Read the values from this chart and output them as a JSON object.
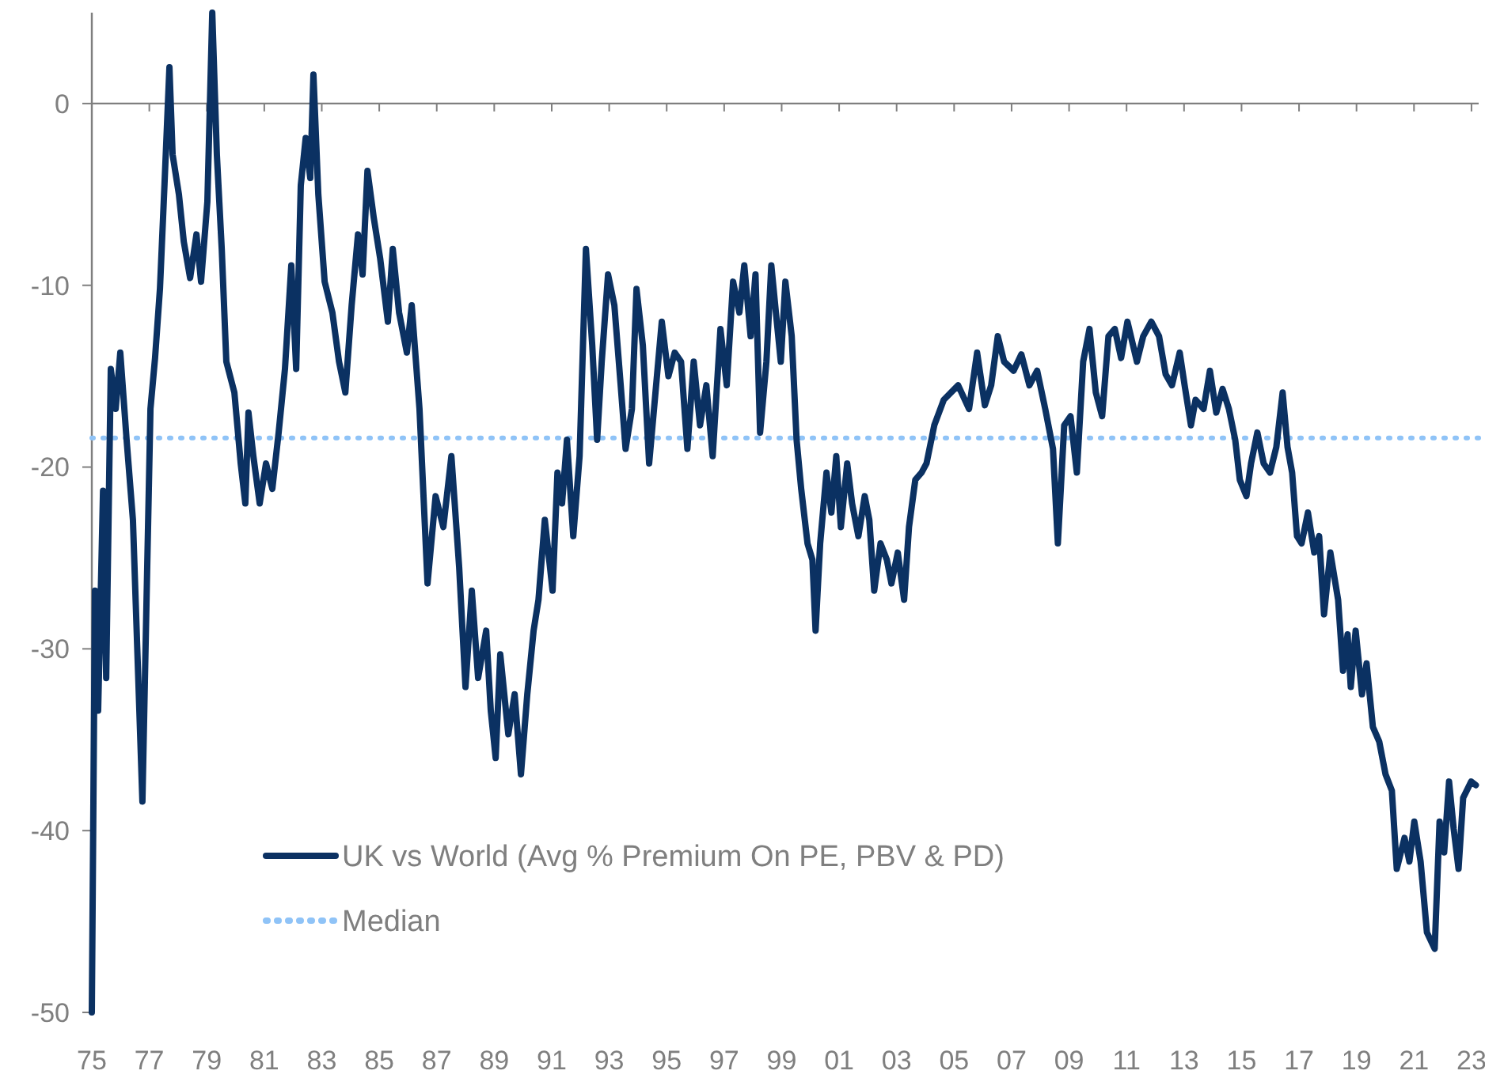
{
  "chart_data": {
    "type": "line",
    "x": [
      1975.0,
      1975.11,
      1975.22,
      1975.39,
      1975.5,
      1975.66,
      1975.83,
      1975.99,
      1976.21,
      1976.43,
      1976.76,
      1977.04,
      1977.2,
      1977.37,
      1977.53,
      1977.7,
      1977.81,
      1978.03,
      1978.2,
      1978.42,
      1978.64,
      1978.8,
      1979.02,
      1979.19,
      1979.35,
      1979.52,
      1979.68,
      1979.96,
      1980.18,
      1980.34,
      1980.45,
      1980.62,
      1980.84,
      1981.06,
      1981.28,
      1981.5,
      1981.72,
      1981.94,
      1982.11,
      1982.27,
      1982.44,
      1982.6,
      1982.71,
      1982.88,
      1983.1,
      1983.37,
      1983.6,
      1983.82,
      1984.04,
      1984.26,
      1984.42,
      1984.59,
      1984.81,
      1985.03,
      1985.3,
      1985.47,
      1985.69,
      1985.96,
      1986.13,
      1986.4,
      1986.68,
      1986.96,
      1987.23,
      1987.51,
      1987.78,
      1988.0,
      1988.22,
      1988.44,
      1988.72,
      1988.88,
      1989.05,
      1989.21,
      1989.49,
      1989.71,
      1989.93,
      1990.15,
      1990.37,
      1990.54,
      1990.76,
      1991.03,
      1991.2,
      1991.36,
      1991.53,
      1991.75,
      1991.97,
      1992.19,
      1992.41,
      1992.58,
      1992.74,
      1992.96,
      1993.18,
      1993.4,
      1993.57,
      1993.79,
      1993.95,
      1994.17,
      1994.39,
      1994.61,
      1994.83,
      1995.06,
      1995.28,
      1995.5,
      1995.72,
      1995.94,
      1996.16,
      1996.38,
      1996.6,
      1996.87,
      1997.09,
      1997.31,
      1997.53,
      1997.7,
      1997.92,
      1998.09,
      1998.25,
      1998.47,
      1998.64,
      1998.8,
      1998.97,
      1999.13,
      1999.35,
      1999.52,
      1999.68,
      1999.9,
      2000.07,
      2000.18,
      2000.34,
      2000.56,
      2000.73,
      2000.9,
      2001.06,
      2001.28,
      2001.45,
      2001.67,
      2001.89,
      2002.05,
      2002.22,
      2002.44,
      2002.66,
      2002.82,
      2003.04,
      2003.26,
      2003.43,
      2003.65,
      2003.87,
      2004.04,
      2004.31,
      2004.64,
      2005.14,
      2005.52,
      2005.8,
      2006.07,
      2006.29,
      2006.52,
      2006.74,
      2007.07,
      2007.34,
      2007.62,
      2007.89,
      2008.17,
      2008.44,
      2008.61,
      2008.83,
      2009.05,
      2009.27,
      2009.49,
      2009.71,
      2009.93,
      2010.15,
      2010.37,
      2010.59,
      2010.81,
      2011.03,
      2011.36,
      2011.58,
      2011.86,
      2012.13,
      2012.36,
      2012.58,
      2012.85,
      2013.02,
      2013.24,
      2013.4,
      2013.68,
      2013.9,
      2014.12,
      2014.34,
      2014.56,
      2014.78,
      2014.94,
      2015.17,
      2015.33,
      2015.55,
      2015.77,
      2015.99,
      2016.21,
      2016.43,
      2016.6,
      2016.76,
      2016.93,
      2017.09,
      2017.31,
      2017.53,
      2017.7,
      2017.87,
      2018.09,
      2018.36,
      2018.53,
      2018.69,
      2018.8,
      2018.97,
      2019.19,
      2019.35,
      2019.57,
      2019.79,
      2020.01,
      2020.23,
      2020.4,
      2020.67,
      2020.84,
      2021.01,
      2021.23,
      2021.45,
      2021.72,
      2021.89,
      2022.05,
      2022.22,
      2022.38,
      2022.55,
      2022.71,
      2022.99,
      2023.15
    ],
    "series": [
      {
        "name": "UK vs World (Avg % Premium On PE, PBV & PD)",
        "color": "#0b3162",
        "values": [
          -50,
          -26.8,
          -33.4,
          -21.3,
          -31.6,
          -14.6,
          -16.8,
          -13.7,
          -18.5,
          -22.9,
          -38.4,
          -16.8,
          -14.0,
          -10.2,
          -4.4,
          2.0,
          -2.8,
          -5.0,
          -7.6,
          -9.6,
          -7.2,
          -9.8,
          -5.4,
          5,
          -2.8,
          -8.0,
          -14.2,
          -15.9,
          -19.8,
          -22.0,
          -17.0,
          -19.4,
          -22.0,
          -19.8,
          -21.2,
          -18.1,
          -14.6,
          -8.9,
          -14.6,
          -4.5,
          -1.9,
          -4.1,
          1.6,
          -5.0,
          -9.8,
          -11.5,
          -14.2,
          -15.9,
          -11.1,
          -7.2,
          -9.4,
          -3.7,
          -6.3,
          -8.5,
          -12.0,
          -8.0,
          -11.5,
          -13.7,
          -11.1,
          -16.8,
          -26.4,
          -21.6,
          -23.3,
          -19.4,
          -25.5,
          -32.1,
          -26.8,
          -31.6,
          -29.0,
          -33.4,
          -36.0,
          -30.3,
          -34.7,
          -32.5,
          -36.9,
          -32.5,
          -29.0,
          -27.3,
          -22.9,
          -26.8,
          -20.3,
          -22.0,
          -18.5,
          -23.8,
          -19.4,
          -8.0,
          -13.3,
          -18.5,
          -14.2,
          -9.4,
          -11.1,
          -15.5,
          -19.0,
          -16.8,
          -10.2,
          -13.3,
          -19.8,
          -15.9,
          -12.0,
          -15.0,
          -13.7,
          -14.2,
          -19.0,
          -14.2,
          -17.7,
          -15.5,
          -19.4,
          -12.4,
          -15.5,
          -9.8,
          -11.5,
          -8.9,
          -12.8,
          -9.4,
          -18.1,
          -14.2,
          -8.9,
          -11.5,
          -14.2,
          -9.8,
          -12.8,
          -18.5,
          -21.2,
          -24.2,
          -25.1,
          -29.0,
          -24.2,
          -20.3,
          -22.5,
          -19.4,
          -23.3,
          -19.8,
          -22.0,
          -23.8,
          -21.6,
          -22.9,
          -26.8,
          -24.2,
          -25.1,
          -26.4,
          -24.7,
          -27.3,
          -23.3,
          -20.7,
          -20.3,
          -19.8,
          -17.7,
          -16.3,
          -15.5,
          -16.8,
          -13.7,
          -16.6,
          -15.5,
          -12.8,
          -14.2,
          -14.7,
          -13.8,
          -15.5,
          -14.7,
          -16.8,
          -19.0,
          -24.2,
          -17.7,
          -17.2,
          -20.3,
          -14.2,
          -12.4,
          -15.9,
          -17.2,
          -12.8,
          -12.4,
          -14.0,
          -12.0,
          -14.2,
          -12.8,
          -12.0,
          -12.8,
          -14.9,
          -15.5,
          -13.7,
          -15.5,
          -17.7,
          -16.3,
          -16.8,
          -14.7,
          -17.0,
          -15.7,
          -16.8,
          -18.5,
          -20.7,
          -21.6,
          -19.8,
          -18.1,
          -19.8,
          -20.3,
          -18.9,
          -15.9,
          -18.9,
          -20.3,
          -23.8,
          -24.2,
          -22.5,
          -24.7,
          -23.8,
          -28.1,
          -24.7,
          -27.3,
          -31.2,
          -29.2,
          -32.1,
          -29.0,
          -32.5,
          -30.8,
          -34.3,
          -35.1,
          -36.9,
          -37.8,
          -42.1,
          -40.4,
          -41.7,
          -39.5,
          -41.7,
          -45.6,
          -46.5,
          -39.5,
          -41.2,
          -37.3,
          -39.9,
          -42.1,
          -38.2,
          -37.3,
          -37.5
        ]
      }
    ],
    "ref_lines": [
      {
        "axis": "y",
        "value": -18.4,
        "label": "Median",
        "color": "#8fc3f7",
        "line_style": "dotted"
      }
    ],
    "xlim": [
      1975,
      2023.25
    ],
    "xticks": [
      {
        "value": 1975,
        "label": "75"
      },
      {
        "value": 1977,
        "label": "77"
      },
      {
        "value": 1979,
        "label": "79"
      },
      {
        "value": 1981,
        "label": "81"
      },
      {
        "value": 1983,
        "label": "83"
      },
      {
        "value": 1985,
        "label": "85"
      },
      {
        "value": 1987,
        "label": "87"
      },
      {
        "value": 1989,
        "label": "89"
      },
      {
        "value": 1991,
        "label": "91"
      },
      {
        "value": 1993,
        "label": "93"
      },
      {
        "value": 1995,
        "label": "95"
      },
      {
        "value": 1997,
        "label": "97"
      },
      {
        "value": 1999,
        "label": "99"
      },
      {
        "value": 2001,
        "label": "01"
      },
      {
        "value": 2003,
        "label": "03"
      },
      {
        "value": 2005,
        "label": "05"
      },
      {
        "value": 2007,
        "label": "07"
      },
      {
        "value": 2009,
        "label": "09"
      },
      {
        "value": 2011,
        "label": "11"
      },
      {
        "value": 2013,
        "label": "13"
      },
      {
        "value": 2015,
        "label": "15"
      },
      {
        "value": 2017,
        "label": "17"
      },
      {
        "value": 2019,
        "label": "19"
      },
      {
        "value": 2021,
        "label": "21"
      },
      {
        "value": 2023,
        "label": "23"
      }
    ],
    "ylim": [
      -50,
      5
    ],
    "yticks": [
      -50,
      -40,
      -30,
      -20,
      -10,
      0
    ],
    "legend": "bottom left",
    "marker": "none",
    "line_style": "solid"
  }
}
